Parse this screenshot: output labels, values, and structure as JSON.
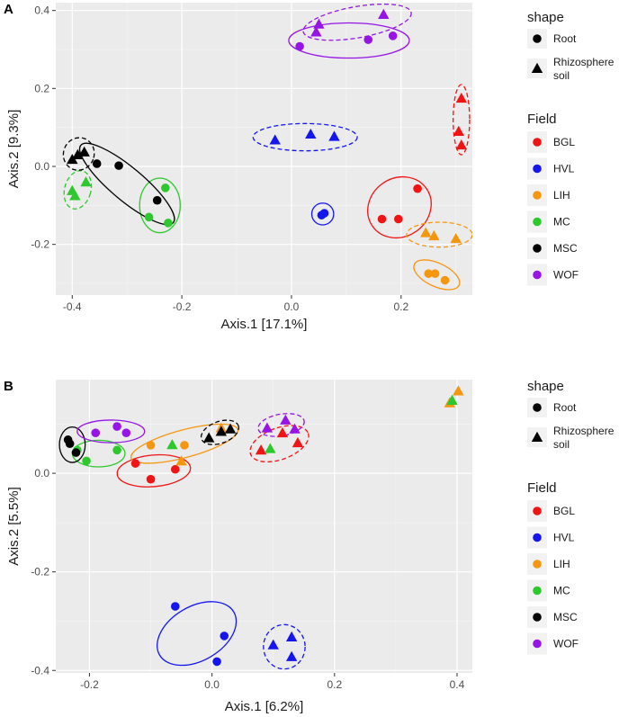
{
  "colors": {
    "BGL": "#f01414",
    "HVL": "#1515f0",
    "LIH": "#f5960f",
    "MC": "#2dc82d",
    "MSC": "#000000",
    "WOF": "#9614e6"
  },
  "legend": {
    "shape_title": "shape",
    "shape_items": [
      {
        "key": "circle",
        "label": "Root"
      },
      {
        "key": "triangle",
        "label_line1": "Rhizosphere",
        "label_line2": "soil"
      }
    ],
    "field_title": "Field",
    "field_items": [
      "BGL",
      "HVL",
      "LIH",
      "MC",
      "MSC",
      "WOF"
    ]
  },
  "chart_data": [
    {
      "panel_label": "A",
      "type": "scatter",
      "xlabel": "Axis.1   [17.1%]",
      "ylabel": "Axis.2   [9.3%]",
      "xlim": [
        -0.43,
        0.33
      ],
      "ylim": [
        -0.33,
        0.42
      ],
      "xticks": [
        -0.4,
        -0.2,
        0.0,
        0.2
      ],
      "xtick_labels": [
        "-0.4",
        "-0.2",
        "0.0",
        "0.2"
      ],
      "yticks": [
        -0.2,
        0.0,
        0.2,
        0.4
      ],
      "ytick_labels": [
        "-0.2",
        "0.0",
        "0.2",
        "0.4"
      ],
      "points": [
        {
          "field": "BGL",
          "shape": "triangle",
          "x": 0.31,
          "y": 0.175
        },
        {
          "field": "BGL",
          "shape": "triangle",
          "x": 0.305,
          "y": 0.09
        },
        {
          "field": "BGL",
          "shape": "triangle",
          "x": 0.31,
          "y": 0.055
        },
        {
          "field": "BGL",
          "shape": "circle",
          "x": 0.23,
          "y": -0.057
        },
        {
          "field": "BGL",
          "shape": "circle",
          "x": 0.165,
          "y": -0.135
        },
        {
          "field": "BGL",
          "shape": "circle",
          "x": 0.195,
          "y": -0.135
        },
        {
          "field": "HVL",
          "shape": "triangle",
          "x": -0.03,
          "y": 0.068
        },
        {
          "field": "HVL",
          "shape": "triangle",
          "x": 0.035,
          "y": 0.083
        },
        {
          "field": "HVL",
          "shape": "triangle",
          "x": 0.078,
          "y": 0.077
        },
        {
          "field": "HVL",
          "shape": "circle",
          "x": 0.055,
          "y": -0.125
        },
        {
          "field": "HVL",
          "shape": "circle",
          "x": 0.06,
          "y": -0.12
        },
        {
          "field": "LIH",
          "shape": "triangle",
          "x": 0.245,
          "y": -0.17
        },
        {
          "field": "LIH",
          "shape": "triangle",
          "x": 0.26,
          "y": -0.178
        },
        {
          "field": "LIH",
          "shape": "triangle",
          "x": 0.3,
          "y": -0.185
        },
        {
          "field": "LIH",
          "shape": "circle",
          "x": 0.25,
          "y": -0.275
        },
        {
          "field": "LIH",
          "shape": "circle",
          "x": 0.262,
          "y": -0.275
        },
        {
          "field": "LIH",
          "shape": "circle",
          "x": 0.28,
          "y": -0.292
        },
        {
          "field": "MC",
          "shape": "triangle",
          "x": -0.4,
          "y": -0.062
        },
        {
          "field": "MC",
          "shape": "triangle",
          "x": -0.395,
          "y": -0.075
        },
        {
          "field": "MC",
          "shape": "triangle",
          "x": -0.375,
          "y": -0.04
        },
        {
          "field": "MC",
          "shape": "circle",
          "x": -0.23,
          "y": -0.055
        },
        {
          "field": "MC",
          "shape": "circle",
          "x": -0.26,
          "y": -0.13
        },
        {
          "field": "MC",
          "shape": "circle",
          "x": -0.225,
          "y": -0.145
        },
        {
          "field": "MSC",
          "shape": "triangle",
          "x": -0.4,
          "y": 0.018
        },
        {
          "field": "MSC",
          "shape": "triangle",
          "x": -0.39,
          "y": 0.03
        },
        {
          "field": "MSC",
          "shape": "triangle",
          "x": -0.378,
          "y": 0.037
        },
        {
          "field": "MSC",
          "shape": "circle",
          "x": -0.355,
          "y": 0.007
        },
        {
          "field": "MSC",
          "shape": "circle",
          "x": -0.315,
          "y": 0.002
        },
        {
          "field": "MSC",
          "shape": "circle",
          "x": -0.245,
          "y": -0.087
        },
        {
          "field": "WOF",
          "shape": "triangle",
          "x": 0.045,
          "y": 0.345
        },
        {
          "field": "WOF",
          "shape": "triangle",
          "x": 0.05,
          "y": 0.365
        },
        {
          "field": "WOF",
          "shape": "triangle",
          "x": 0.168,
          "y": 0.39
        },
        {
          "field": "WOF",
          "shape": "circle",
          "x": 0.015,
          "y": 0.308
        },
        {
          "field": "WOF",
          "shape": "circle",
          "x": 0.14,
          "y": 0.325
        },
        {
          "field": "WOF",
          "shape": "circle",
          "x": 0.185,
          "y": 0.335
        }
      ],
      "ellipses": [
        {
          "field": "BGL",
          "dashed": true,
          "cx": 0.31,
          "cy": 0.12,
          "rx": 0.015,
          "ry": 0.09,
          "rotation": 0
        },
        {
          "field": "BGL",
          "dashed": false,
          "cx": 0.197,
          "cy": -0.105,
          "rx": 0.06,
          "ry": 0.075,
          "rotation": -35
        },
        {
          "field": "HVL",
          "dashed": true,
          "cx": 0.025,
          "cy": 0.075,
          "rx": 0.095,
          "ry": 0.035,
          "rotation": 0
        },
        {
          "field": "HVL",
          "dashed": false,
          "cx": 0.057,
          "cy": -0.122,
          "rx": 0.02,
          "ry": 0.028,
          "rotation": 0
        },
        {
          "field": "LIH",
          "dashed": true,
          "cx": 0.27,
          "cy": -0.175,
          "rx": 0.06,
          "ry": 0.032,
          "rotation": 0
        },
        {
          "field": "LIH",
          "dashed": false,
          "cx": 0.265,
          "cy": -0.278,
          "rx": 0.045,
          "ry": 0.03,
          "rotation": 25
        },
        {
          "field": "MC",
          "dashed": true,
          "cx": -0.39,
          "cy": -0.06,
          "rx": 0.024,
          "ry": 0.05,
          "rotation": 15
        },
        {
          "field": "MC",
          "dashed": false,
          "cx": -0.24,
          "cy": -0.1,
          "rx": 0.037,
          "ry": 0.07,
          "rotation": 0
        },
        {
          "field": "MSC",
          "dashed": true,
          "cx": -0.388,
          "cy": 0.032,
          "rx": 0.028,
          "ry": 0.042,
          "rotation": 20
        },
        {
          "field": "MSC",
          "dashed": false,
          "cx": -0.3,
          "cy": -0.045,
          "rx": 0.11,
          "ry": 0.042,
          "rotation": 40
        },
        {
          "field": "WOF",
          "dashed": true,
          "cx": 0.12,
          "cy": 0.37,
          "rx": 0.1,
          "ry": 0.04,
          "rotation": -10
        },
        {
          "field": "WOF",
          "dashed": false,
          "cx": 0.105,
          "cy": 0.323,
          "rx": 0.11,
          "ry": 0.045,
          "rotation": 0
        }
      ]
    },
    {
      "panel_label": "B",
      "type": "scatter",
      "xlabel": "Axis.1   [6.2%]",
      "ylabel": "Axis.2   [5.5%]",
      "xlim": [
        -0.255,
        0.425
      ],
      "ylim": [
        -0.405,
        0.19
      ],
      "xticks": [
        -0.2,
        0.0,
        0.2,
        0.4
      ],
      "xtick_labels": [
        "-0.2",
        "0.0",
        "0.2",
        "0.4"
      ],
      "yticks": [
        -0.4,
        -0.2,
        0.0
      ],
      "ytick_labels": [
        "-0.4",
        "-0.2",
        "0.0"
      ],
      "points": [
        {
          "field": "BGL",
          "shape": "triangle",
          "x": 0.08,
          "y": 0.047
        },
        {
          "field": "BGL",
          "shape": "triangle",
          "x": 0.115,
          "y": 0.082
        },
        {
          "field": "BGL",
          "shape": "triangle",
          "x": 0.14,
          "y": 0.062
        },
        {
          "field": "BGL",
          "shape": "circle",
          "x": -0.125,
          "y": 0.02
        },
        {
          "field": "BGL",
          "shape": "circle",
          "x": -0.1,
          "y": -0.012
        },
        {
          "field": "BGL",
          "shape": "circle",
          "x": -0.06,
          "y": 0.008
        },
        {
          "field": "HVL",
          "shape": "triangle",
          "x": 0.1,
          "y": -0.348
        },
        {
          "field": "HVL",
          "shape": "triangle",
          "x": 0.13,
          "y": -0.332
        },
        {
          "field": "HVL",
          "shape": "triangle",
          "x": 0.13,
          "y": -0.372
        },
        {
          "field": "HVL",
          "shape": "circle",
          "x": -0.06,
          "y": -0.27
        },
        {
          "field": "HVL",
          "shape": "circle",
          "x": 0.02,
          "y": -0.33
        },
        {
          "field": "HVL",
          "shape": "circle",
          "x": 0.008,
          "y": -0.382
        },
        {
          "field": "LIH",
          "shape": "triangle",
          "x": 0.388,
          "y": 0.143
        },
        {
          "field": "LIH",
          "shape": "triangle",
          "x": 0.402,
          "y": 0.167
        },
        {
          "field": "LIH",
          "shape": "triangle",
          "x": -0.05,
          "y": 0.025
        },
        {
          "field": "LIH",
          "shape": "triangle",
          "x": 0.015,
          "y": 0.092
        },
        {
          "field": "LIH",
          "shape": "circle",
          "x": -0.1,
          "y": 0.057
        },
        {
          "field": "LIH",
          "shape": "circle",
          "x": -0.045,
          "y": 0.057
        },
        {
          "field": "MC",
          "shape": "triangle",
          "x": 0.392,
          "y": 0.148
        },
        {
          "field": "MC",
          "shape": "triangle",
          "x": -0.065,
          "y": 0.058
        },
        {
          "field": "MC",
          "shape": "triangle",
          "x": 0.095,
          "y": 0.05
        },
        {
          "field": "MC",
          "shape": "circle",
          "x": -0.22,
          "y": 0.047
        },
        {
          "field": "MC",
          "shape": "circle",
          "x": -0.205,
          "y": 0.025
        },
        {
          "field": "MC",
          "shape": "circle",
          "x": -0.155,
          "y": 0.047
        },
        {
          "field": "MSC",
          "shape": "triangle",
          "x": -0.005,
          "y": 0.072
        },
        {
          "field": "MSC",
          "shape": "triangle",
          "x": 0.015,
          "y": 0.085
        },
        {
          "field": "MSC",
          "shape": "triangle",
          "x": 0.03,
          "y": 0.09
        },
        {
          "field": "MSC",
          "shape": "circle",
          "x": -0.235,
          "y": 0.068
        },
        {
          "field": "MSC",
          "shape": "circle",
          "x": -0.232,
          "y": 0.06
        },
        {
          "field": "MSC",
          "shape": "circle",
          "x": -0.222,
          "y": 0.042
        },
        {
          "field": "WOF",
          "shape": "triangle",
          "x": 0.09,
          "y": 0.092
        },
        {
          "field": "WOF",
          "shape": "triangle",
          "x": 0.12,
          "y": 0.108
        },
        {
          "field": "WOF",
          "shape": "triangle",
          "x": 0.135,
          "y": 0.09
        },
        {
          "field": "WOF",
          "shape": "circle",
          "x": -0.19,
          "y": 0.082
        },
        {
          "field": "WOF",
          "shape": "circle",
          "x": -0.155,
          "y": 0.095
        },
        {
          "field": "WOF",
          "shape": "circle",
          "x": -0.14,
          "y": 0.082
        }
      ],
      "ellipses": [
        {
          "field": "BGL",
          "dashed": true,
          "cx": 0.11,
          "cy": 0.06,
          "rx": 0.05,
          "ry": 0.032,
          "rotation": -20
        },
        {
          "field": "BGL",
          "dashed": false,
          "cx": -0.095,
          "cy": 0.005,
          "rx": 0.06,
          "ry": 0.032,
          "rotation": -5
        },
        {
          "field": "HVL",
          "dashed": true,
          "cx": 0.118,
          "cy": -0.352,
          "rx": 0.034,
          "ry": 0.045,
          "rotation": 0
        },
        {
          "field": "HVL",
          "dashed": false,
          "cx": -0.025,
          "cy": -0.325,
          "rx": 0.07,
          "ry": 0.055,
          "rotation": -30
        },
        {
          "field": "LIH",
          "dashed": false,
          "cx": -0.045,
          "cy": 0.06,
          "rx": 0.09,
          "ry": 0.028,
          "rotation": -15
        },
        {
          "field": "MC",
          "dashed": false,
          "cx": -0.185,
          "cy": 0.04,
          "rx": 0.043,
          "ry": 0.027,
          "rotation": 0
        },
        {
          "field": "MSC",
          "dashed": true,
          "cx": 0.013,
          "cy": 0.083,
          "rx": 0.032,
          "ry": 0.022,
          "rotation": -20
        },
        {
          "field": "MSC",
          "dashed": false,
          "cx": -0.228,
          "cy": 0.058,
          "rx": 0.021,
          "ry": 0.036,
          "rotation": 0
        },
        {
          "field": "WOF",
          "dashed": true,
          "cx": 0.113,
          "cy": 0.098,
          "rx": 0.038,
          "ry": 0.022,
          "rotation": -10
        },
        {
          "field": "WOF",
          "dashed": false,
          "cx": -0.165,
          "cy": 0.085,
          "rx": 0.055,
          "ry": 0.023,
          "rotation": 0
        }
      ]
    }
  ]
}
